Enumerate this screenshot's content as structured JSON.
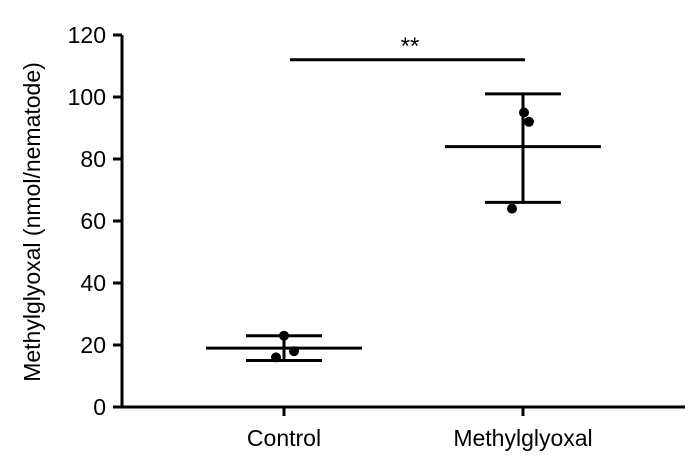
{
  "chart_data": {
    "type": "scatter",
    "title": "",
    "xlabel": "",
    "ylabel": "Methylglyoxal (nmol/nematode)",
    "ylim": [
      0,
      120
    ],
    "yticks": [
      0,
      20,
      40,
      60,
      80,
      100,
      120
    ],
    "grid": false,
    "categories": [
      "Control",
      "Methylglyoxal"
    ],
    "groups": [
      {
        "category": "Control",
        "points": [
          23,
          18,
          16
        ],
        "mean": 19,
        "error_upper": 23,
        "error_lower": 15
      },
      {
        "category": "Methylglyoxal",
        "points": [
          95,
          92,
          64
        ],
        "mean": 84,
        "error_upper": 101,
        "error_lower": 66
      }
    ],
    "annotations": [
      {
        "type": "significance",
        "text": "**",
        "between": [
          "Control",
          "Methylglyoxal"
        ],
        "y": 112
      }
    ],
    "colors": {
      "marks": "#000000"
    }
  }
}
